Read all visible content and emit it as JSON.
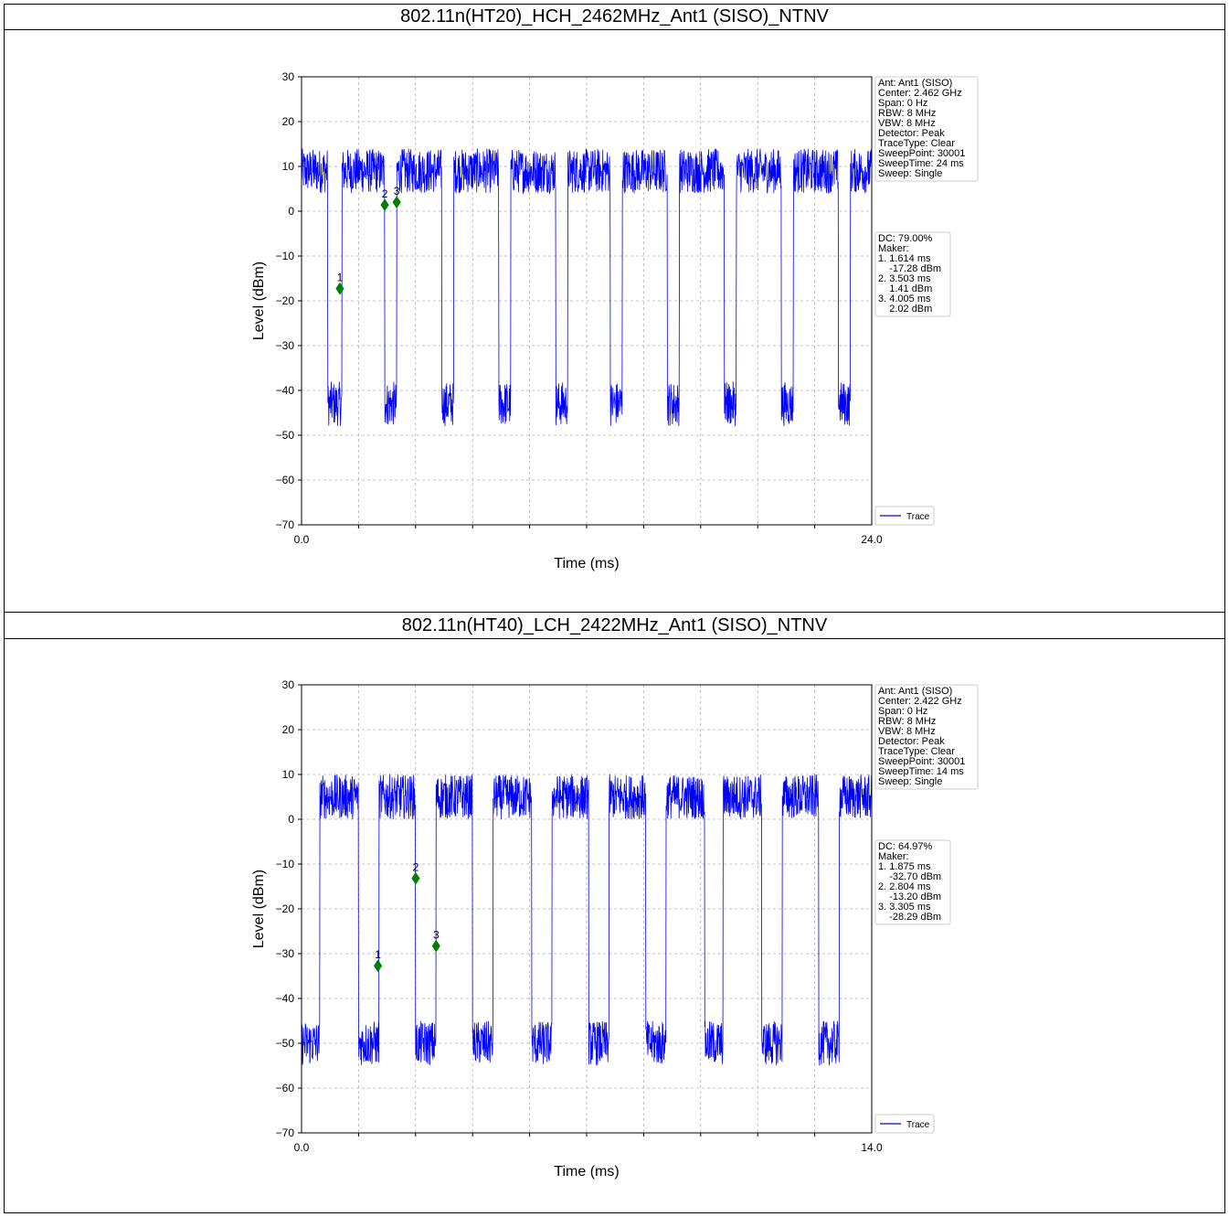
{
  "panels": [
    {
      "title": "802.11n(HT20)_HCH_2462MHz_Ant1 (SISO)_NTNV",
      "info": [
        "Ant: Ant1 (SISO)",
        "Center: 2.462 GHz",
        "Span: 0 Hz",
        "RBW: 8 MHz",
        "VBW: 8 MHz",
        "Detector: Peak",
        "TraceType: Clear",
        "SweepPoint: 30001",
        "SweepTime: 24 ms",
        "Sweep: Single"
      ],
      "markers_box": [
        "DC: 79.00%",
        "Maker:",
        "1. 1.614 ms",
        "   -17.28 dBm",
        "2. 3.503 ms",
        "   1.41 dBm",
        "3. 4.005 ms",
        "   2.02 dBm"
      ]
    },
    {
      "title": "802.11n(HT40)_LCH_2422MHz_Ant1 (SISO)_NTNV",
      "info": [
        "Ant: Ant1 (SISO)",
        "Center: 2.422 GHz",
        "Span: 0 Hz",
        "RBW: 8 MHz",
        "VBW: 8 MHz",
        "Detector: Peak",
        "TraceType: Clear",
        "SweepPoint: 30001",
        "SweepTime: 14 ms",
        "Sweep: Single"
      ],
      "markers_box": [
        "DC: 64.97%",
        "Maker:",
        "1. 1.875 ms",
        "   -32.70 dBm",
        "2. 2.804 ms",
        "   -13.20 dBm",
        "3. 3.305 ms",
        "   -28.29 dBm"
      ]
    }
  ],
  "chart_data": [
    {
      "type": "line",
      "xlabel": "Time (ms)",
      "ylabel": "Level (dBm)",
      "xlim": [
        0,
        24
      ],
      "ylim": [
        -70,
        30
      ],
      "x_ticklabels": [
        "0.0",
        "24.0"
      ],
      "y_ticks": [
        30,
        20,
        10,
        0,
        -10,
        -20,
        -30,
        -40,
        -50,
        -60,
        -70
      ],
      "grid": true,
      "legend": {
        "label": "Trace",
        "placement": "right"
      },
      "trace_color": "#0000ff",
      "series": [
        {
          "name": "Trace",
          "high_level_dBm": 9,
          "low_level_dBm": -43,
          "low_intervals_ms": [
            [
              1.1,
              1.7
            ],
            [
              3.5,
              4.0
            ],
            [
              5.9,
              6.4
            ],
            [
              8.3,
              8.8
            ],
            [
              10.7,
              11.2
            ],
            [
              13.0,
              13.5
            ],
            [
              15.4,
              15.9
            ],
            [
              17.8,
              18.3
            ],
            [
              20.2,
              20.7
            ],
            [
              22.6,
              23.1
            ]
          ]
        }
      ],
      "markers": [
        {
          "label": "1",
          "x": 1.614,
          "y": -17.28
        },
        {
          "label": "2",
          "x": 3.503,
          "y": 1.41
        },
        {
          "label": "3",
          "x": 4.005,
          "y": 2.02
        }
      ],
      "marker_color": "#008000"
    },
    {
      "type": "line",
      "xlabel": "Time (ms)",
      "ylabel": "Level (dBm)",
      "xlim": [
        0,
        14
      ],
      "ylim": [
        -70,
        30
      ],
      "x_ticklabels": [
        "0.0",
        "14.0"
      ],
      "y_ticks": [
        30,
        20,
        10,
        0,
        -10,
        -20,
        -30,
        -40,
        -50,
        -60,
        -70
      ],
      "grid": true,
      "legend": {
        "label": "Trace",
        "placement": "right"
      },
      "trace_color": "#0000ff",
      "series": [
        {
          "name": "Trace",
          "high_level_dBm": 5,
          "low_level_dBm": -50,
          "low_intervals_ms": [
            [
              0,
              0.45
            ],
            [
              1.4,
              1.9
            ],
            [
              2.8,
              3.3
            ],
            [
              4.2,
              4.7
            ],
            [
              5.65,
              6.15
            ],
            [
              7.05,
              7.55
            ],
            [
              8.45,
              8.95
            ],
            [
              9.9,
              10.35
            ],
            [
              11.3,
              11.8
            ],
            [
              12.7,
              13.2
            ]
          ]
        }
      ],
      "markers": [
        {
          "label": "1",
          "x": 1.875,
          "y": -32.7
        },
        {
          "label": "2",
          "x": 2.804,
          "y": -13.2
        },
        {
          "label": "3",
          "x": 3.305,
          "y": -28.29
        }
      ],
      "marker_color": "#008000"
    }
  ]
}
